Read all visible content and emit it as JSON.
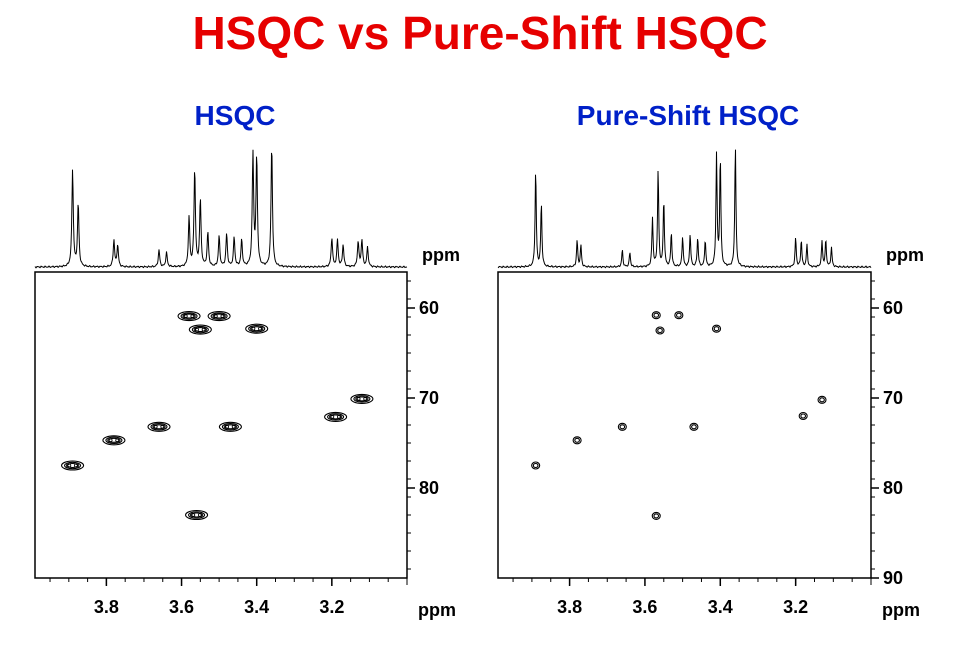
{
  "title": "HSQC vs Pure-Shift HSQC",
  "chart_data": [
    {
      "type": "scatter",
      "title": "HSQC",
      "xlabel": "ppm",
      "ylabel": "ppm",
      "proj_label": "ppm",
      "x_ticks": [
        3.8,
        3.6,
        3.4,
        3.2
      ],
      "y_ticks": [
        60,
        70,
        80
      ],
      "xlim": [
        3.99,
        3.0
      ],
      "ylim": [
        56,
        90
      ],
      "style": "multiplet",
      "points": [
        {
          "x": 3.89,
          "y": 77.5
        },
        {
          "x": 3.78,
          "y": 74.7
        },
        {
          "x": 3.66,
          "y": 73.2
        },
        {
          "x": 3.58,
          "y": 60.9
        },
        {
          "x": 3.55,
          "y": 62.4
        },
        {
          "x": 3.5,
          "y": 60.9
        },
        {
          "x": 3.47,
          "y": 73.2
        },
        {
          "x": 3.4,
          "y": 62.3
        },
        {
          "x": 3.56,
          "y": 83.0
        },
        {
          "x": 3.19,
          "y": 72.1
        },
        {
          "x": 3.12,
          "y": 70.1
        }
      ]
    },
    {
      "type": "scatter",
      "title": "Pure-Shift HSQC",
      "xlabel": "ppm",
      "ylabel": "ppm",
      "proj_label": "ppm",
      "x_ticks": [
        3.8,
        3.6,
        3.4,
        3.2
      ],
      "y_ticks": [
        60,
        70,
        80,
        90
      ],
      "xlim": [
        3.99,
        3.0
      ],
      "ylim": [
        56,
        90
      ],
      "style": "singlet",
      "points": [
        {
          "x": 3.89,
          "y": 77.5
        },
        {
          "x": 3.78,
          "y": 74.7
        },
        {
          "x": 3.66,
          "y": 73.2
        },
        {
          "x": 3.57,
          "y": 60.8
        },
        {
          "x": 3.51,
          "y": 60.8
        },
        {
          "x": 3.56,
          "y": 62.5
        },
        {
          "x": 3.47,
          "y": 73.2
        },
        {
          "x": 3.41,
          "y": 62.3
        },
        {
          "x": 3.57,
          "y": 83.1
        },
        {
          "x": 3.18,
          "y": 72.0
        },
        {
          "x": 3.13,
          "y": 70.2
        }
      ]
    }
  ]
}
